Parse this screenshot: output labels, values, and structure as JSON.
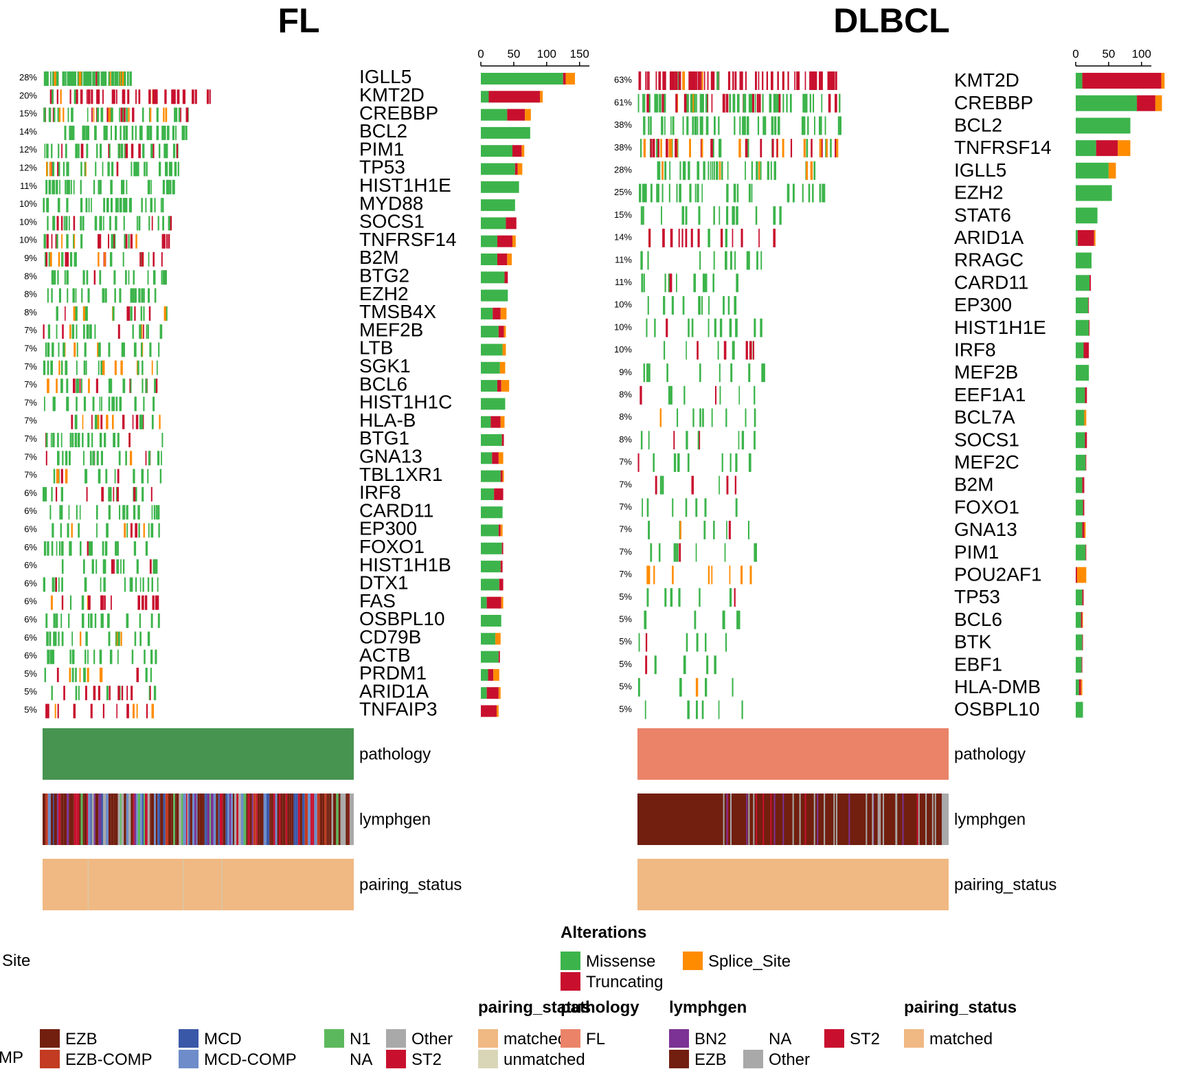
{
  "colors": {
    "Missense": "#3cb44b",
    "Truncating": "#c8102e",
    "Splice_Site": "#ff8c00",
    "pathology_DLBCL": "#479450",
    "pathology_FL": "#ea8368",
    "EZB": "#721f0f",
    "EZB-COMP": "#c23b22",
    "MCD": "#3a58a8",
    "MCD-COMP": "#6d8cc9",
    "N1": "#5cb85c",
    "NA": "#ffffff",
    "Other": "#a9a9a9",
    "ST2": "#c8102e",
    "BN2": "#7b3294",
    "matched": "#f0b883",
    "unmatched": "#d9d6b8"
  },
  "chart_data": [
    {
      "type": "heatmap",
      "title": "FL",
      "genes": [
        "IGLL5",
        "KMT2D",
        "CREBBP",
        "BCL2",
        "PIM1",
        "TP53",
        "HIST1H1E",
        "MYD88",
        "SOCS1",
        "TNFRSF14",
        "B2M",
        "BTG2",
        "EZH2",
        "TMSB4X",
        "MEF2B",
        "LTB",
        "SGK1",
        "BCL6",
        "HIST1H1C",
        "HLA-B",
        "BTG1",
        "GNA13",
        "TBL1XR1",
        "IRF8",
        "CARD11",
        "EP300",
        "FOXO1",
        "HIST1H1B",
        "DTX1",
        "FAS",
        "OSBPL10",
        "CD79B",
        "ACTB",
        "PRDM1",
        "ARID1A",
        "TNFAIP3"
      ],
      "percent": [
        "28%",
        "20%",
        "15%",
        "14%",
        "12%",
        "12%",
        "11%",
        "10%",
        "10%",
        "10%",
        "9%",
        "8%",
        "8%",
        "8%",
        "7%",
        "7%",
        "7%",
        "7%",
        "7%",
        "7%",
        "7%",
        "7%",
        "7%",
        "6%",
        "6%",
        "6%",
        "6%",
        "6%",
        "6%",
        "6%",
        "6%",
        "6%",
        "6%",
        "5%",
        "5%",
        "5%"
      ],
      "counts": {
        "Missense": [
          125,
          12,
          40,
          75,
          48,
          52,
          58,
          52,
          38,
          25,
          25,
          36,
          41,
          18,
          27,
          33,
          29,
          25,
          37,
          15,
          32,
          17,
          30,
          20,
          33,
          27,
          32,
          30,
          28,
          9,
          31,
          22,
          27,
          11,
          9,
          0
        ],
        "Truncating": [
          4,
          78,
          27,
          0,
          14,
          4,
          0,
          0,
          16,
          23,
          15,
          5,
          0,
          12,
          8,
          0,
          0,
          6,
          0,
          15,
          3,
          10,
          3,
          14,
          0,
          3,
          2,
          3,
          6,
          22,
          0,
          0,
          2,
          8,
          18,
          24
        ],
        "Splice_Site": [
          14,
          4,
          9,
          0,
          4,
          7,
          0,
          0,
          0,
          5,
          7,
          0,
          0,
          9,
          3,
          5,
          8,
          12,
          0,
          6,
          0,
          7,
          2,
          0,
          0,
          3,
          0,
          0,
          0,
          3,
          0,
          8,
          0,
          9,
          3,
          3
        ]
      },
      "xaxis_ticks": [
        0,
        50,
        100,
        150
      ],
      "annotations": {
        "pathology": "DLBCL",
        "lymphgen": "mixed",
        "pairing_status": "matched"
      }
    },
    {
      "type": "heatmap",
      "title": "DLBCL",
      "genes": [
        "KMT2D",
        "CREBBP",
        "BCL2",
        "TNFRSF14",
        "IGLL5",
        "EZH2",
        "STAT6",
        "ARID1A",
        "RRAGC",
        "CARD11",
        "EP300",
        "HIST1H1E",
        "IRF8",
        "MEF2B",
        "EEF1A1",
        "BCL7A",
        "SOCS1",
        "MEF2C",
        "B2M",
        "FOXO1",
        "GNA13",
        "PIM1",
        "POU2AF1",
        "TP53",
        "BCL6",
        "BTK",
        "EBF1",
        "HLA-DMB",
        "OSBPL10"
      ],
      "percent": [
        "63%",
        "61%",
        "38%",
        "38%",
        "28%",
        "25%",
        "15%",
        "14%",
        "11%",
        "11%",
        "10%",
        "10%",
        "10%",
        "9%",
        "8%",
        "8%",
        "8%",
        "7%",
        "7%",
        "7%",
        "7%",
        "7%",
        "7%",
        "5%",
        "5%",
        "5%",
        "5%",
        "5%",
        "5%"
      ],
      "counts": {
        "Missense": [
          10,
          93,
          83,
          31,
          50,
          55,
          33,
          3,
          24,
          21,
          19,
          20,
          12,
          20,
          14,
          13,
          14,
          15,
          10,
          11,
          10,
          15,
          0,
          10,
          8,
          10,
          9,
          5,
          11
        ],
        "Truncating": [
          120,
          28,
          0,
          33,
          0,
          0,
          0,
          25,
          0,
          2,
          1,
          1,
          8,
          0,
          3,
          0,
          3,
          1,
          3,
          2,
          3,
          1,
          2,
          2,
          2,
          1,
          1,
          3,
          0
        ],
        "Splice_Site": [
          5,
          10,
          0,
          19,
          11,
          0,
          0,
          2,
          0,
          0,
          0,
          0,
          0,
          0,
          0,
          3,
          0,
          0,
          0,
          0,
          2,
          0,
          14,
          0,
          1,
          0,
          0,
          2,
          0
        ]
      },
      "xaxis_ticks": [
        0,
        50,
        100
      ],
      "annotations": {
        "pathology": "FL",
        "lymphgen": "EZB",
        "pairing_status": "matched"
      }
    }
  ],
  "legend": {
    "alterations_title": "Alterations",
    "alterations": [
      "Missense",
      "Splice_Site",
      "Truncating"
    ],
    "fragment": "Site",
    "fragment2": "MP",
    "left_lymphgen": [
      [
        "EZB",
        "EZB-COMP"
      ],
      [
        "MCD",
        "MCD-COMP"
      ],
      [
        "N1",
        "NA"
      ],
      [
        "Other",
        "ST2"
      ]
    ],
    "left_pairing_title": "pairing_status",
    "left_pairing": [
      "matched",
      "unmatched"
    ],
    "pathology_title": "pathology",
    "pathology": [
      "FL"
    ],
    "lymphgen_title": "lymphgen",
    "right_lymphgen": [
      [
        "BN2",
        "EZB"
      ],
      [
        "NA",
        "Other"
      ],
      [
        "ST2"
      ]
    ],
    "right_pairing_title": "pairing_status",
    "right_pairing": [
      "matched"
    ]
  },
  "annotation_labels": [
    "pathology",
    "lymphgen",
    "pairing_status"
  ]
}
